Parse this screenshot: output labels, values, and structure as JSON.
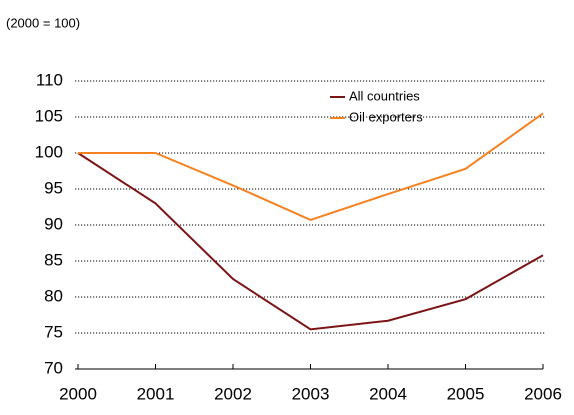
{
  "chart_data": {
    "type": "line",
    "subtitle": "(2000 = 100)",
    "categories": [
      "2000",
      "2001",
      "2002",
      "2003",
      "2004",
      "2005",
      "2006"
    ],
    "series": [
      {
        "name": "All countries",
        "color": "#7b1416",
        "values": [
          100,
          93,
          82.5,
          75.5,
          76.7,
          79.7,
          85.8
        ]
      },
      {
        "name": "Oil exporters",
        "color": "#f58220",
        "values": [
          100,
          100,
          95.5,
          90.7,
          94.3,
          97.8,
          105.5
        ]
      }
    ],
    "ylim": [
      70,
      110
    ],
    "yticks": [
      70,
      75,
      80,
      85,
      90,
      95,
      100,
      105,
      110
    ],
    "grid": true,
    "legend": "top-right"
  }
}
